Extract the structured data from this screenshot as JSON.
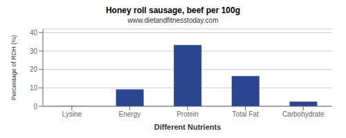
{
  "chart_data": {
    "type": "bar",
    "title": "Honey roll sausage, beef per 100g",
    "subtitle": "www.dietandfitnesstoday.com",
    "xlabel": "Different Nutrients",
    "ylabel": "Percentage of RDH (%)",
    "categories": [
      "Lysine",
      "Energy",
      "Protein",
      "Total Fat",
      "Carbohydrate"
    ],
    "values": [
      0.1,
      9.2,
      33.3,
      16.4,
      2.5
    ],
    "color": "#2b4590",
    "ylim": [
      0,
      42
    ],
    "yticks": [
      0,
      10,
      20,
      30,
      40
    ],
    "grid": true
  }
}
